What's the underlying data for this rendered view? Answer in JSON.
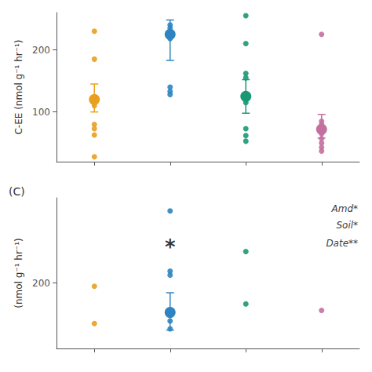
{
  "chart_data": [
    {
      "type": "scatter",
      "y_label": "C-EE (nmol g⁻¹ hr⁻¹)",
      "xlim": [
        0.5,
        4.5
      ],
      "xticks": [
        1,
        2,
        3,
        4
      ],
      "ylim": [
        20,
        260
      ],
      "yticks": [
        100,
        200
      ],
      "tick_labels": "y",
      "grid": false,
      "series": [
        {
          "color": "#E8A020",
          "x": 1,
          "values": [
            230,
            185,
            115,
            110,
            80,
            73,
            63,
            28
          ],
          "mean": 120,
          "error_bar": [
            100,
            145
          ]
        },
        {
          "color": "#2E84C0",
          "x": 2,
          "values": [
            240,
            235,
            228,
            222,
            218,
            140,
            133,
            128
          ],
          "mean": 225,
          "error_bar": [
            183,
            248
          ]
        },
        {
          "color": "#1A9874",
          "x": 3,
          "values": [
            255,
            210,
            162,
            155,
            125,
            120,
            115,
            73,
            62,
            53
          ],
          "mean": 125,
          "error_bar": [
            98,
            152
          ]
        },
        {
          "color": "#C46FA0",
          "x": 4,
          "values": [
            225,
            85,
            80,
            72,
            65,
            57,
            50,
            43,
            37
          ],
          "mean": 72,
          "error_bar": [
            58,
            96
          ]
        }
      ]
    },
    {
      "type": "scatter",
      "title": "(C)",
      "y_label": "(nmol g⁻¹ hr⁻¹)",
      "xlim": [
        0.5,
        4.5
      ],
      "xticks": [
        1,
        2,
        3,
        4
      ],
      "ylim": [
        100,
        330
      ],
      "yticks": [
        200
      ],
      "tick_labels": "y",
      "grid": false,
      "series": [
        {
          "color": "#E8A020",
          "x": 1,
          "values": [
            195,
            138
          ]
        },
        {
          "color": "#2E84C0",
          "x": 2,
          "values": [
            310,
            218,
            212,
            142,
            130
          ],
          "mean": 155,
          "error_bar": [
            128,
            185
          ]
        },
        {
          "color": "#1A9874",
          "x": 3,
          "values": [
            248,
            168
          ]
        },
        {
          "color": "#C46FA0",
          "x": 4,
          "values": [
            158
          ]
        }
      ],
      "annotations": [
        {
          "text": "*",
          "x": 2.0,
          "y": 255
        },
        {
          "text": "Amd*",
          "x": 4.48,
          "y": 320
        },
        {
          "text": "Soil*",
          "x": 4.48,
          "y": 295
        },
        {
          "text": "Date**",
          "x": 4.48,
          "y": 268
        }
      ]
    }
  ]
}
